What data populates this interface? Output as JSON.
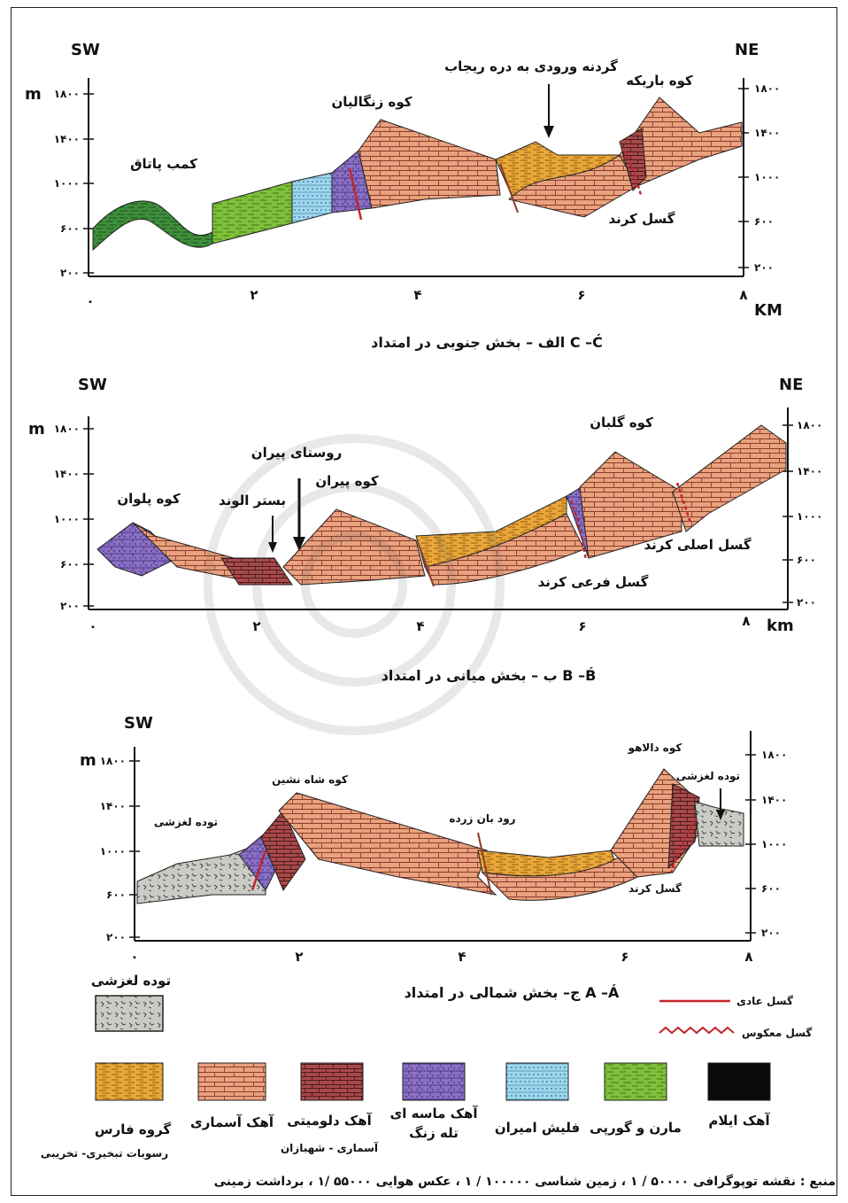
{
  "sections": [
    {
      "caption": "الف – بخش جنوبی در امتداد C –Ć",
      "dir_left": "SW",
      "dir_right": "NE",
      "unit_left": "m",
      "unit_right": "KM",
      "y_ticks": [
        "۱۸۰۰",
        "۱۴۰۰",
        "۱۰۰۰",
        "۶۰۰",
        "۲۰۰"
      ],
      "x_ticks": [
        "۰",
        "۲",
        "۴",
        "۶",
        "۸"
      ],
      "labels": {
        "komb_pataq": "کمب پاتاق",
        "kuh_zangalian": "کوه زنگالیان",
        "gardaneh": "گردنه ورودی به دره ریجاب",
        "kuh_barikeh": "کوه باریکه",
        "gosal_kerend": "گسل کرند"
      }
    },
    {
      "caption": "ب – بخش میانی در امتداد B –B́",
      "dir_left": "SW",
      "dir_right": "NE",
      "unit_left": "m",
      "unit_right": "km",
      "y_ticks": [
        "۱۸۰۰",
        "۱۴۰۰",
        "۱۰۰۰",
        "۶۰۰",
        "۲۰۰"
      ],
      "x_ticks": [
        "۰",
        "۲",
        "۴",
        "۶",
        "۸"
      ],
      "labels": {
        "kuh_palvan": "کوه پلوان",
        "bastar_alvand": "بستر الوند",
        "rusta_piran": "روستای پیران",
        "kuh_piran": "کوه پیران",
        "kuh_golban": "کوه گلبان",
        "gosal_asli": "گسل اصلی کرند",
        "gosal_farei": "گسل فرعی کرند"
      }
    },
    {
      "caption": "ج– بخش شمالی در امتداد A –Á",
      "dir_left": "SW",
      "unit_left": "m",
      "y_ticks": [
        "۱۸۰۰",
        "۱۴۰۰",
        "۱۰۰۰",
        "۶۰۰",
        "۲۰۰"
      ],
      "x_ticks": [
        "۰",
        "۲",
        "۴",
        "۶",
        "۸"
      ],
      "labels": {
        "tudeh_left": "توده لغزشی",
        "kuh_shah_neshin": "کوه شاه نشین",
        "rud_banzardeh": "رود بان زرده",
        "kuh_dalahu": "کوه دالاهو",
        "tudeh_right": "توده لغزشی",
        "gosal_kerend": "گسل کرند"
      }
    }
  ],
  "legend": {
    "landslide_title": "توده لغزشی",
    "normal_fault": "گسل عادی",
    "reverse_fault": "گسل معکوس",
    "units": [
      {
        "line1": "آهک ایلام",
        "line2": "",
        "color": "#0a0a0a"
      },
      {
        "line1": "مارن و گورپی",
        "line2": "",
        "color": "#7fbf3a"
      },
      {
        "line1": "فلیش امیران",
        "line2": "",
        "color": "#9fd6ee"
      },
      {
        "line1": "آهک ماسه ای",
        "line2": "تله زنگ",
        "color": "#8a6fc4"
      },
      {
        "line1": "آهک دلومیتی",
        "line2": "آسماری - شهبازان",
        "color": "#b0484a"
      },
      {
        "line1": "آهک آسماری",
        "line2": "",
        "color": "#e9a27e"
      },
      {
        "line1": "گروه فارس",
        "line2": "رسوبات تبخیری- تخریبی",
        "color": "#e8a83a"
      }
    ]
  },
  "source": "منبع : نقشه توپوگرافی ۵۰۰۰۰ / ۱ ، زمین شناسی ۱۰۰۰۰۰ / ۱ ، عکس هوایی ۵۵۰۰۰ /۱ ، برداشت زمینی",
  "colors": {
    "limestone": "#e9a27e",
    "marl": "#7fbf3a",
    "darkgreen": "#3f8f3a",
    "flysch": "#9fd6ee",
    "dolomite": "#b0484a",
    "sandy": "#8a6fc4",
    "fars": "#e8a83a",
    "landslide": "#c8ccc4",
    "fault": "#c0262a"
  }
}
